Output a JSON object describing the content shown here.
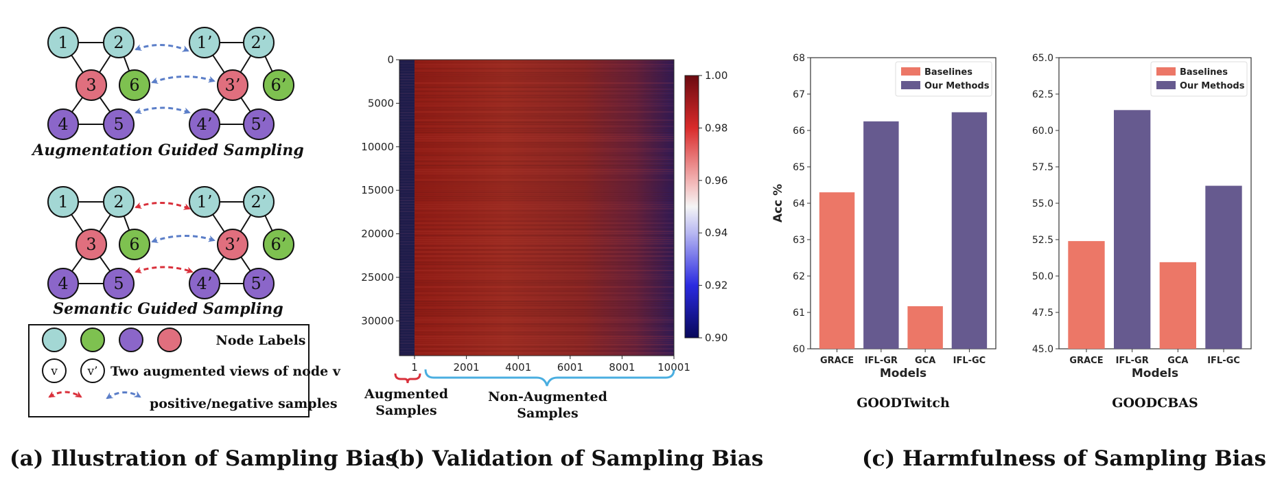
{
  "panels": {
    "a": {
      "caption": "(a) Illustration of Sampling Bias",
      "aug_title": "Augmentation Guided Sampling",
      "sem_title": "Semantic Guided Sampling",
      "legend_node_labels": "Node Labels",
      "legend_views_text": "Two augmented views of node v",
      "legend_views_left": "v",
      "legend_views_right": "v’",
      "legend_pairs_text": "positive/negative samples",
      "colors": {
        "teal": "#a3d7d4",
        "green": "#7ec150",
        "purple": "#8b66c9",
        "red": "#e06f7e",
        "blue_arrow": "#5b7ec8",
        "red_arrow": "#d9303b"
      },
      "graph_a_nodes": [
        "1",
        "2",
        "3",
        "6",
        "4",
        "5"
      ],
      "graph_b_nodes": [
        "1’",
        "2’",
        "3’",
        "6’",
        "4’",
        "5’"
      ]
    },
    "b": {
      "caption": "(b) Validation of Sampling Bias",
      "augmented_label_line1": "Augmented",
      "augmented_label_line2": "Samples",
      "non_augmented_label_line1": "Non-Augmented",
      "non_augmented_label_line2": "Samples"
    },
    "c": {
      "caption": "(c) Harmfulness of Sampling Bias"
    }
  },
  "chart_data": [
    {
      "type": "heatmap",
      "title": "",
      "y_ticks": [
        0,
        5000,
        10000,
        15000,
        20000,
        25000,
        30000
      ],
      "y_range": [
        0,
        34000
      ],
      "x_ticks": [
        "1",
        "2001",
        "4001",
        "6001",
        "8001",
        "10001"
      ],
      "x_range": [
        1,
        10001
      ],
      "colorbar": {
        "ticks": [
          "1.00",
          "0.98",
          "0.96",
          "0.94",
          "0.92",
          "0.90"
        ],
        "range": [
          0.9,
          1.0
        ]
      },
      "augmented_column_value": 0.9,
      "non_augmented_value_range": [
        0.9,
        0.995
      ]
    },
    {
      "type": "bar",
      "title": "GOODTwitch",
      "categories": [
        "GRACE",
        "IFL-GR",
        "GCA",
        "IFL-GC"
      ],
      "values": [
        64.3,
        66.25,
        61.17,
        66.5
      ],
      "groups": [
        "Baselines",
        "Our Methods",
        "Baselines",
        "Our Methods"
      ],
      "xlabel": "Models",
      "ylabel": "Acc %",
      "ylim": [
        60,
        68
      ],
      "y_ticks": [
        "60",
        "61",
        "62",
        "63",
        "64",
        "65",
        "66",
        "67",
        "68"
      ],
      "legend": [
        {
          "name": "Baselines",
          "color": "#ec7767"
        },
        {
          "name": "Our Methods",
          "color": "#665a8f"
        }
      ],
      "legend_position": "top-right"
    },
    {
      "type": "bar",
      "title": "GOODCBAS",
      "categories": [
        "GRACE",
        "IFL-GR",
        "GCA",
        "IFL-GC"
      ],
      "values": [
        52.4,
        61.4,
        50.95,
        56.2
      ],
      "groups": [
        "Baselines",
        "Our Methods",
        "Baselines",
        "Our Methods"
      ],
      "xlabel": "Models",
      "ylabel": "",
      "ylim": [
        45,
        65
      ],
      "y_ticks": [
        "45.0",
        "47.5",
        "50.0",
        "52.5",
        "55.0",
        "57.5",
        "60.0",
        "62.5",
        "65.0"
      ],
      "legend": [
        {
          "name": "Baselines",
          "color": "#ec7767"
        },
        {
          "name": "Our Methods",
          "color": "#665a8f"
        }
      ],
      "legend_position": "top-right"
    }
  ]
}
